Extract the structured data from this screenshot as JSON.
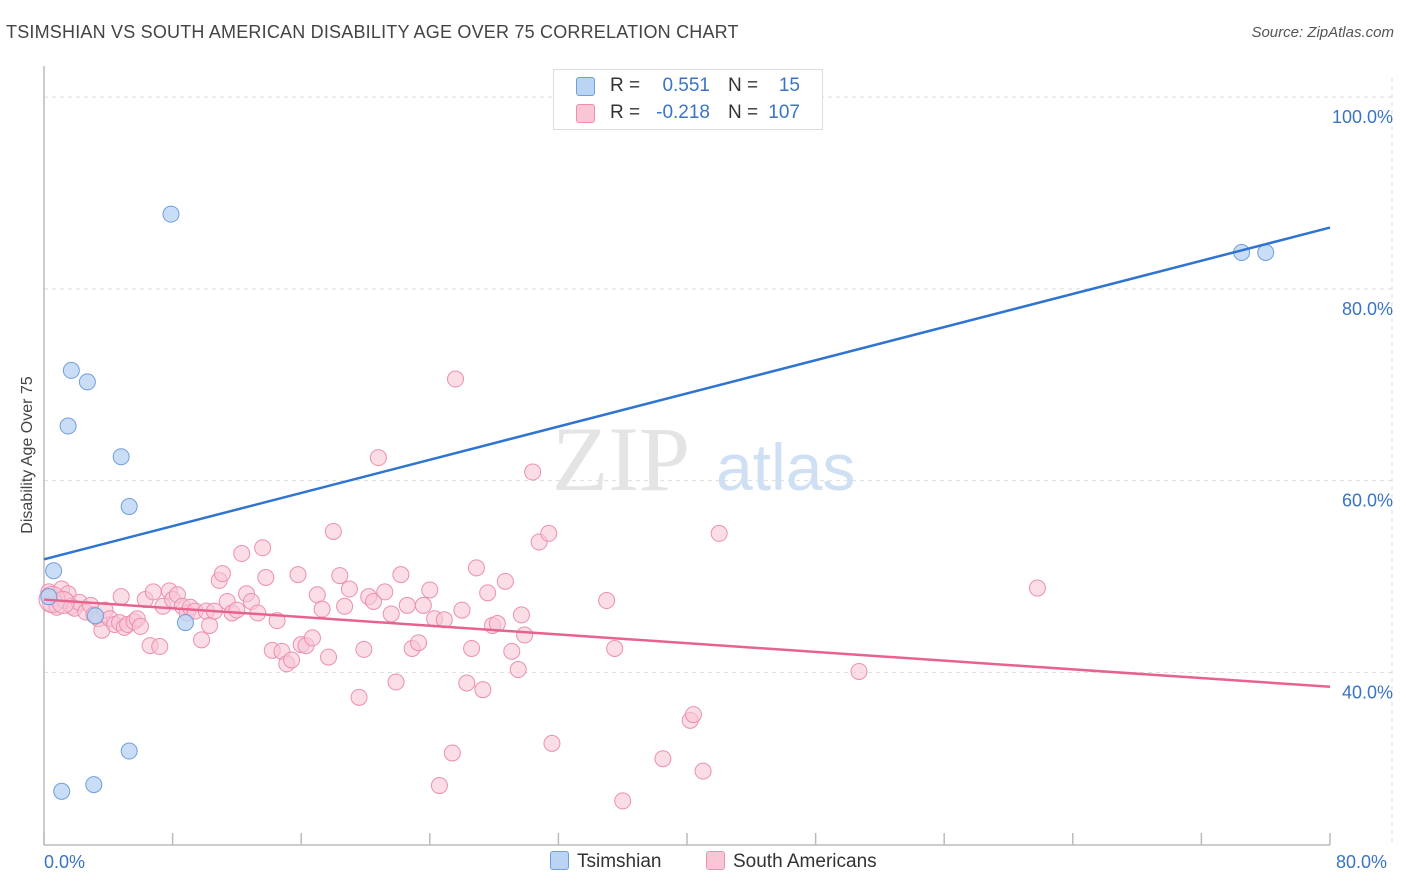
{
  "header": {
    "title": "TSIMSHIAN VS SOUTH AMERICAN DISABILITY AGE OVER 75 CORRELATION CHART",
    "source": "Source: ZipAtlas.com"
  },
  "watermark": {
    "zip": "ZIP",
    "atlas": "atlas"
  },
  "legend": {
    "rows": [
      {
        "series": "Tsimshian",
        "r_label": "R =",
        "r_value": "0.551",
        "n_label": "N =",
        "n_value": "15"
      },
      {
        "series": "South Americans",
        "r_label": "R =",
        "r_value": "-0.218",
        "n_label": "N =",
        "n_value": "107"
      }
    ]
  },
  "colors": {
    "tsimshian_fill": "#bcd4f4",
    "tsimshian_stroke": "#6f9fdc",
    "tsimshian_line": "#2f74d0",
    "south_fill": "#f9c6d6",
    "south_stroke": "#ec8fb0",
    "south_line": "#e8628f",
    "tick_text": "#3a74c4",
    "grid": "#dddddd"
  },
  "chart_data": {
    "type": "scatter",
    "title": "TSIMSHIAN VS SOUTH AMERICAN DISABILITY AGE OVER 75 CORRELATION CHART",
    "xlabel": "",
    "ylabel": "Disability Age Over 75",
    "xlim": [
      0,
      80
    ],
    "ylim": [
      22,
      102
    ],
    "x_tick_labels": [
      "0.0%",
      "80.0%"
    ],
    "y_ticks": [
      {
        "value": 100,
        "label": "100.0%"
      },
      {
        "value": 80,
        "label": "80.0%"
      },
      {
        "value": 60,
        "label": "60.0%"
      },
      {
        "value": 40,
        "label": "40.0%"
      }
    ],
    "grid": true,
    "legend_position": "top-center",
    "series": [
      {
        "name": "Tsimshian",
        "points": [
          [
            0.3,
            47.9
          ],
          [
            0.6,
            50.6
          ],
          [
            1.1,
            27.6
          ],
          [
            1.5,
            65.7
          ],
          [
            1.7,
            71.5
          ],
          [
            2.7,
            70.3
          ],
          [
            3.1,
            28.3
          ],
          [
            3.2,
            45.9
          ],
          [
            4.8,
            62.5
          ],
          [
            5.3,
            57.3
          ],
          [
            5.3,
            31.8
          ],
          [
            7.9,
            87.8
          ],
          [
            8.8,
            45.2
          ],
          [
            74.5,
            83.8
          ],
          [
            76.0,
            83.8
          ]
        ],
        "trend": {
          "x": [
            0,
            80
          ],
          "y": [
            51.8,
            86.4
          ]
        }
      },
      {
        "name": "South Americans",
        "points": [
          [
            0.3,
            48.4
          ],
          [
            0.4,
            47.2
          ],
          [
            0.6,
            47.8
          ],
          [
            0.8,
            46.8
          ],
          [
            1.1,
            48.7
          ],
          [
            1.3,
            47.5
          ],
          [
            1.5,
            48.2
          ],
          [
            1.7,
            46.9
          ],
          [
            1.9,
            46.7
          ],
          [
            2.2,
            47.3
          ],
          [
            2.6,
            46.3
          ],
          [
            2.9,
            47.0
          ],
          [
            3.1,
            46.0
          ],
          [
            3.4,
            45.6
          ],
          [
            3.6,
            44.4
          ],
          [
            3.8,
            46.5
          ],
          [
            4.1,
            45.6
          ],
          [
            4.4,
            45.0
          ],
          [
            4.7,
            45.2
          ],
          [
            4.8,
            47.9
          ],
          [
            5.0,
            44.7
          ],
          [
            5.2,
            45.0
          ],
          [
            5.6,
            45.3
          ],
          [
            5.8,
            45.6
          ],
          [
            6.0,
            44.8
          ],
          [
            6.3,
            47.6
          ],
          [
            6.6,
            42.8
          ],
          [
            6.8,
            48.4
          ],
          [
            7.2,
            42.7
          ],
          [
            7.4,
            46.9
          ],
          [
            7.8,
            48.5
          ],
          [
            8.0,
            47.6
          ],
          [
            8.3,
            48.1
          ],
          [
            8.6,
            46.9
          ],
          [
            8.9,
            46.2
          ],
          [
            9.1,
            46.8
          ],
          [
            9.4,
            46.4
          ],
          [
            9.8,
            43.4
          ],
          [
            10.1,
            46.4
          ],
          [
            10.3,
            44.9
          ],
          [
            10.6,
            46.4
          ],
          [
            10.9,
            49.6
          ],
          [
            11.1,
            50.3
          ],
          [
            11.4,
            47.4
          ],
          [
            11.7,
            46.2
          ],
          [
            12.0,
            46.5
          ],
          [
            12.3,
            52.4
          ],
          [
            12.6,
            48.2
          ],
          [
            12.9,
            47.4
          ],
          [
            13.3,
            46.2
          ],
          [
            13.6,
            53.0
          ],
          [
            13.8,
            49.9
          ],
          [
            14.2,
            42.3
          ],
          [
            14.5,
            45.4
          ],
          [
            14.8,
            42.2
          ],
          [
            15.1,
            40.9
          ],
          [
            15.4,
            41.3
          ],
          [
            15.8,
            50.2
          ],
          [
            16.0,
            42.9
          ],
          [
            16.3,
            42.8
          ],
          [
            16.7,
            43.6
          ],
          [
            17.0,
            48.1
          ],
          [
            17.3,
            46.6
          ],
          [
            17.7,
            41.6
          ],
          [
            18.0,
            54.7
          ],
          [
            18.4,
            50.1
          ],
          [
            18.7,
            46.9
          ],
          [
            19.0,
            48.7
          ],
          [
            19.6,
            37.4
          ],
          [
            19.9,
            42.4
          ],
          [
            20.2,
            47.9
          ],
          [
            20.5,
            47.4
          ],
          [
            20.8,
            62.4
          ],
          [
            21.2,
            48.4
          ],
          [
            21.6,
            46.1
          ],
          [
            21.9,
            39.0
          ],
          [
            22.2,
            50.2
          ],
          [
            22.6,
            47.0
          ],
          [
            22.9,
            42.5
          ],
          [
            23.3,
            43.1
          ],
          [
            23.6,
            47.0
          ],
          [
            24.0,
            48.6
          ],
          [
            24.3,
            45.6
          ],
          [
            24.6,
            28.2
          ],
          [
            24.9,
            45.5
          ],
          [
            25.4,
            31.6
          ],
          [
            25.6,
            70.6
          ],
          [
            26.0,
            46.5
          ],
          [
            26.3,
            38.9
          ],
          [
            26.6,
            42.5
          ],
          [
            26.9,
            50.9
          ],
          [
            27.3,
            38.2
          ],
          [
            27.6,
            48.3
          ],
          [
            27.9,
            44.9
          ],
          [
            28.2,
            45.1
          ],
          [
            28.7,
            49.5
          ],
          [
            29.1,
            42.2
          ],
          [
            29.5,
            40.3
          ],
          [
            29.7,
            46.0
          ],
          [
            29.9,
            43.9
          ],
          [
            30.4,
            60.9
          ],
          [
            30.8,
            53.6
          ],
          [
            31.4,
            54.5
          ],
          [
            31.6,
            32.6
          ],
          [
            35.0,
            47.5
          ],
          [
            36.0,
            26.6
          ],
          [
            35.5,
            42.5
          ]
        ],
        "trend": {
          "x": [
            0,
            80
          ],
          "y": [
            47.6,
            38.5
          ]
        }
      }
    ]
  },
  "extra_points": {
    "South Americans": [
      [
        38.5,
        31.0
      ],
      [
        40.2,
        35.0
      ],
      [
        40.4,
        35.6
      ],
      [
        41.0,
        29.7
      ],
      [
        42.0,
        54.5
      ],
      [
        50.7,
        40.1
      ],
      [
        61.8,
        48.8
      ]
    ]
  }
}
